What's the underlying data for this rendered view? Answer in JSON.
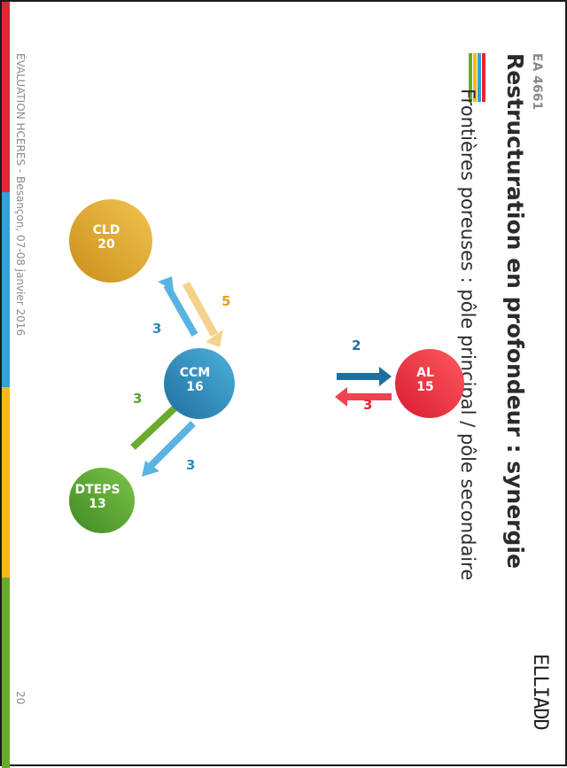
{
  "header": {
    "code": "EA 4661",
    "title": "Restructuration en profondeur : synergie",
    "subtitle": "Frontières poreuses : pôle principal  /  pôle secondaire",
    "logo_text": "ELLIADD"
  },
  "footer": {
    "text": "ÉVALUATION HCERES - Besançon, 07-08 janvier 2016",
    "page_number": "20"
  },
  "colors": {
    "red": "#e32637",
    "blue": "#2ea3dc",
    "yellow": "#f7b818",
    "green": "#6aab2e"
  },
  "diagram": {
    "nodes": {
      "al": {
        "name": "AL",
        "value": "15",
        "color": "#e8233a"
      },
      "ccm": {
        "name": "CCM",
        "value": "16",
        "color": "#2b8cbf"
      },
      "cld": {
        "name": "CLD",
        "value": "20",
        "color": "#e1a826"
      },
      "dteps": {
        "name": "DTEPS",
        "value": "13",
        "color": "#5aa530"
      }
    },
    "edges": {
      "ccm_to_al": "2",
      "al_to_ccm": "3",
      "cld_to_ccm": "5",
      "ccm_to_cld": "3",
      "ccm_to_dteps": "3",
      "dteps_to_ccm": "3"
    }
  }
}
